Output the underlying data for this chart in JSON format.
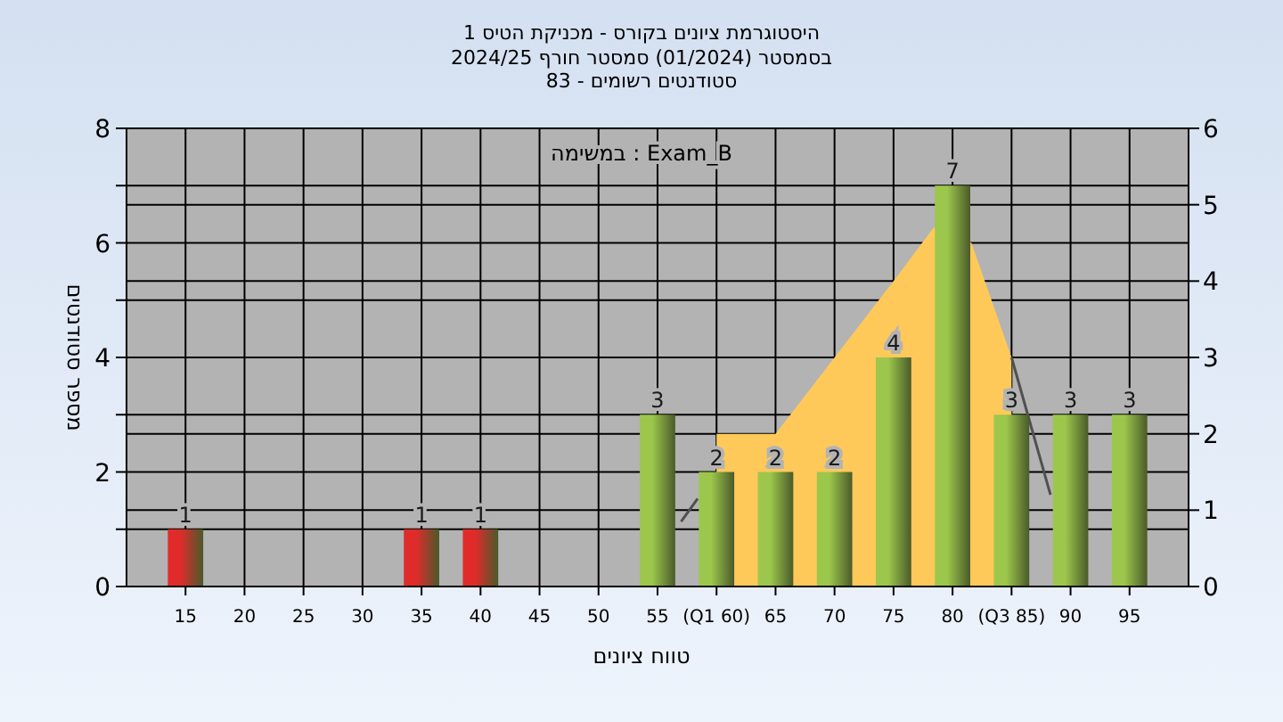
{
  "chart_data": {
    "type": "bar",
    "title": "היסטוגרמת ציונים בקורס - מכניקת הטיס 1",
    "subtitle": "בסמסטר (01/2024) סמסטר חורף 2024/25\nסטודנטים רשומים - 83",
    "xlabel": "טווח ציונים",
    "ylabel": "מספר סטודנטים",
    "annotations": [
      "במשימה : Exam_B"
    ],
    "xlim": [
      10,
      100
    ],
    "xticks": [
      15,
      20,
      25,
      30,
      35,
      40,
      45,
      50,
      55,
      {
        "value": 60,
        "label": "(Q1 60)"
      },
      65,
      70,
      75,
      80,
      {
        "value": 85,
        "label": "(Q3 85)"
      },
      90,
      95
    ],
    "ylim": [
      0,
      8
    ],
    "yticks": [
      0,
      {
        "value": 1,
        "label": null
      },
      2,
      {
        "value": 3,
        "label": null
      },
      4,
      {
        "value": 5,
        "label": null
      },
      6,
      {
        "value": 7,
        "label": null
      },
      8
    ],
    "y2lim": [
      0,
      6
    ],
    "y2ticks": [
      0,
      1,
      2,
      3,
      4,
      5,
      6
    ],
    "grid": true,
    "series": [
      {
        "type": "area",
        "axis": "y2",
        "color": "#ffc95a",
        "x": [
          60,
          65,
          70,
          75,
          78.4,
          81.6,
          85
        ],
        "values": [
          2,
          2,
          3,
          4,
          4.7,
          4.5,
          3
        ]
      },
      {
        "type": "line",
        "axis": "y2",
        "color": "#505050",
        "x": [
          57,
          58.4
        ],
        "values": [
          0.85,
          1.15
        ]
      },
      {
        "type": "line",
        "axis": "y2",
        "color": "#505050",
        "x": [
          85,
          88.3
        ],
        "values": [
          3,
          1.2
        ]
      },
      {
        "value_labels": [
          "1",
          "1",
          "1",
          "3",
          "2",
          "2",
          "2",
          "4",
          "7",
          "3",
          "3",
          "3"
        ],
        "x": [
          15,
          35,
          40,
          55,
          60,
          65,
          70,
          75,
          80,
          85,
          90,
          95
        ],
        "values": [
          1,
          1,
          1,
          3,
          2,
          2,
          2,
          4,
          7,
          3,
          3,
          3
        ],
        "colors": [
          "#e02b2b",
          "#e02b2b",
          "#e02b2b",
          "#9cc74c",
          "#9cc74c",
          "#9cc74c",
          "#9cc74c",
          "#9cc74c",
          "#9cc74c",
          "#9cc74c",
          "#9cc74c",
          "#9cc74c"
        ]
      }
    ]
  }
}
